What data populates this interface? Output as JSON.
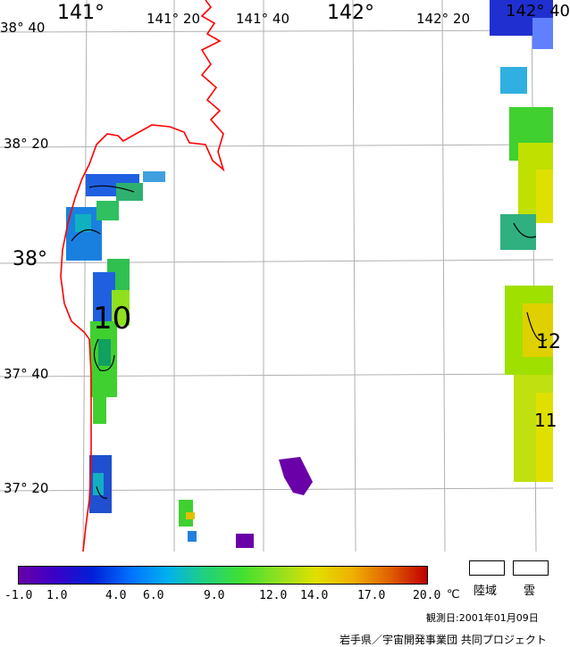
{
  "map": {
    "lon_labels_top": [
      {
        "text": "141°",
        "size": "big"
      },
      {
        "text": "141° 20",
        "size": "small"
      },
      {
        "text": "141° 40",
        "size": "small"
      },
      {
        "text": "142°",
        "size": "big"
      },
      {
        "text": "142° 20",
        "size": "small"
      },
      {
        "text": "142° 40",
        "size": "big"
      }
    ],
    "lat_labels_left": [
      {
        "text": "38° 40",
        "size": "small"
      },
      {
        "text": "38° 20",
        "size": "small"
      },
      {
        "text": "38°",
        "size": "big"
      },
      {
        "text": "37° 40",
        "size": "small"
      },
      {
        "text": "37° 20",
        "size": "small"
      }
    ],
    "contour_labels": [
      "10",
      "12",
      "11"
    ],
    "colors": {
      "coastline": "#ff0000",
      "grid": "#b0b0b0",
      "contour": "#000000"
    }
  },
  "legend": {
    "colorbar_stops": [
      "#6a00a8",
      "#3a00c8",
      "#0020d8",
      "#0070ff",
      "#00b0f0",
      "#20d080",
      "#40e030",
      "#90e020",
      "#e0e000",
      "#f0b000",
      "#e06000",
      "#c00000"
    ],
    "ticks": [
      "-1.0",
      "1.0",
      "4.0",
      "6.0",
      "9.0",
      "12.0",
      "14.0",
      "17.0",
      "20.0"
    ],
    "unit": "℃",
    "land_label": "陸域",
    "cloud_label": "雲"
  },
  "footer": {
    "observation_date": "観測日:2001年01月09日",
    "credit": "岩手県／宇宙開発事業団  共同プロジェクト"
  }
}
